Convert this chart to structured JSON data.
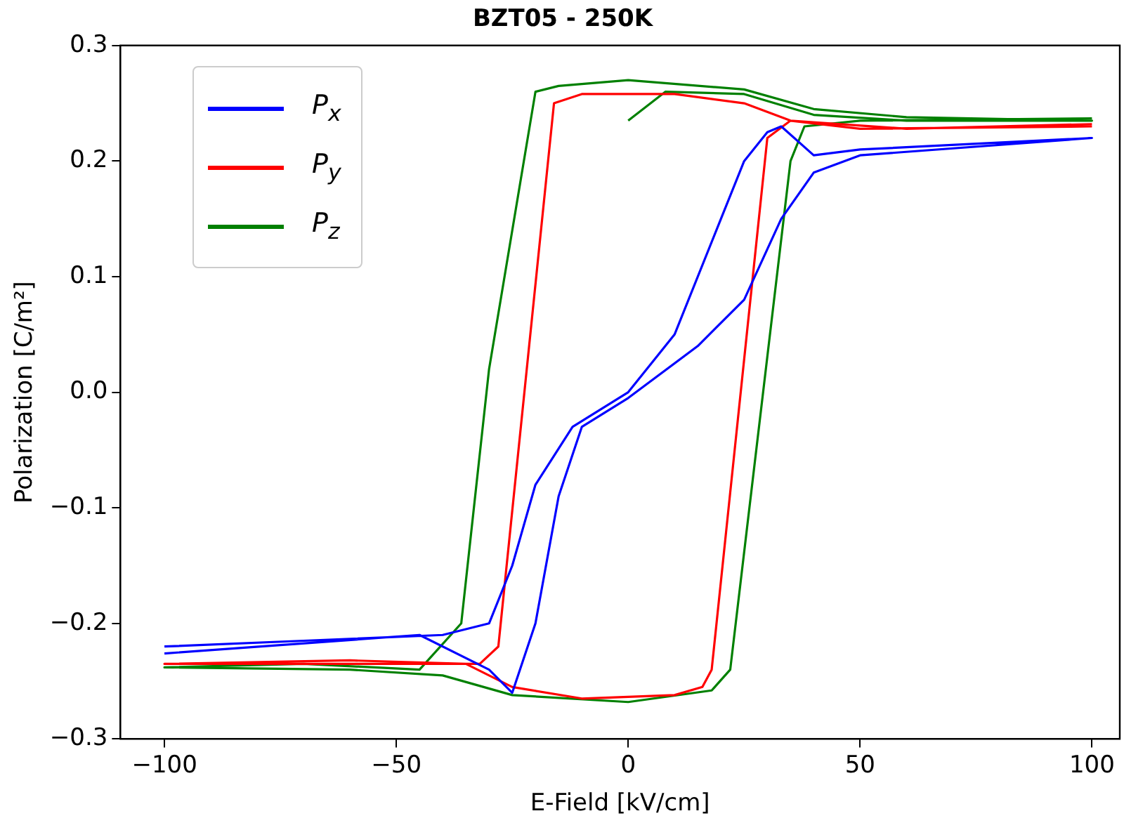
{
  "chart_data": {
    "type": "line",
    "title": "BZT05 - 250K",
    "xlabel": "E-Field [kV/cm]",
    "ylabel": "Polarization [C/m²]",
    "xlim": [
      -109.5,
      106
    ],
    "ylim": [
      -0.3,
      0.3
    ],
    "xticks": [
      {
        "value": -100,
        "label": "−100"
      },
      {
        "value": -50,
        "label": "−50"
      },
      {
        "value": 0,
        "label": "0"
      },
      {
        "value": 50,
        "label": "50"
      },
      {
        "value": 100,
        "label": "100"
      }
    ],
    "yticks": [
      {
        "value": -0.3,
        "label": "−0.3"
      },
      {
        "value": -0.2,
        "label": "−0.2"
      },
      {
        "value": -0.1,
        "label": "−0.1"
      },
      {
        "value": 0,
        "label": "0.0"
      },
      {
        "value": 0.1,
        "label": "0.1"
      },
      {
        "value": 0.2,
        "label": "0.2"
      },
      {
        "value": 0.3,
        "label": "0.3"
      }
    ],
    "grid": false,
    "legend": "top left",
    "marker": "none",
    "line_style": "solid",
    "series": [
      {
        "name": "P$_{x}$",
        "color": "#0000ff",
        "x": [
          -100,
          -70,
          -40,
          -30,
          -25,
          -20,
          -12,
          0,
          10,
          20,
          25,
          30,
          33,
          40,
          50,
          100,
          50,
          40,
          33,
          25,
          15,
          0,
          -10,
          -15,
          -20,
          -25,
          -30,
          -45,
          -100
        ],
        "values": [
          -0.22,
          -0.215,
          -0.21,
          -0.2,
          -0.15,
          -0.08,
          -0.03,
          0,
          0.05,
          0.15,
          0.2,
          0.225,
          0.23,
          0.205,
          0.21,
          0.22,
          0.205,
          0.19,
          0.15,
          0.08,
          0.04,
          -0.005,
          -0.03,
          -0.09,
          -0.2,
          -0.26,
          -0.24,
          -0.21,
          -0.226
        ]
      },
      {
        "name": "P$_{y}$",
        "color": "#ff0000",
        "x": [
          100,
          50,
          35,
          25,
          10,
          -10,
          -16,
          -28,
          -32,
          -50,
          -100,
          -60,
          -35,
          -25,
          -10,
          10,
          16,
          18,
          30,
          35,
          60,
          100
        ],
        "values": [
          0.23,
          0.228,
          0.235,
          0.25,
          0.258,
          0.258,
          0.25,
          -0.22,
          -0.235,
          -0.235,
          -0.235,
          -0.232,
          -0.235,
          -0.255,
          -0.265,
          -0.262,
          -0.255,
          -0.24,
          0.22,
          0.235,
          0.228,
          0.232
        ]
      },
      {
        "name": "P$_{z}$",
        "color": "#008000",
        "x": [
          0,
          8,
          25,
          40,
          60,
          100,
          60,
          40,
          25,
          0,
          -15,
          -20,
          -30,
          -36,
          -45,
          -70,
          -100,
          -60,
          -40,
          -25,
          0,
          18,
          22,
          35,
          38,
          50,
          100
        ],
        "values": [
          0.235,
          0.26,
          0.258,
          0.24,
          0.235,
          0.235,
          0.238,
          0.245,
          0.262,
          0.27,
          0.265,
          0.26,
          0.02,
          -0.2,
          -0.24,
          -0.235,
          -0.238,
          -0.24,
          -0.245,
          -0.262,
          -0.268,
          -0.258,
          -0.24,
          0.2,
          0.23,
          0.235,
          0.237
        ]
      }
    ]
  }
}
